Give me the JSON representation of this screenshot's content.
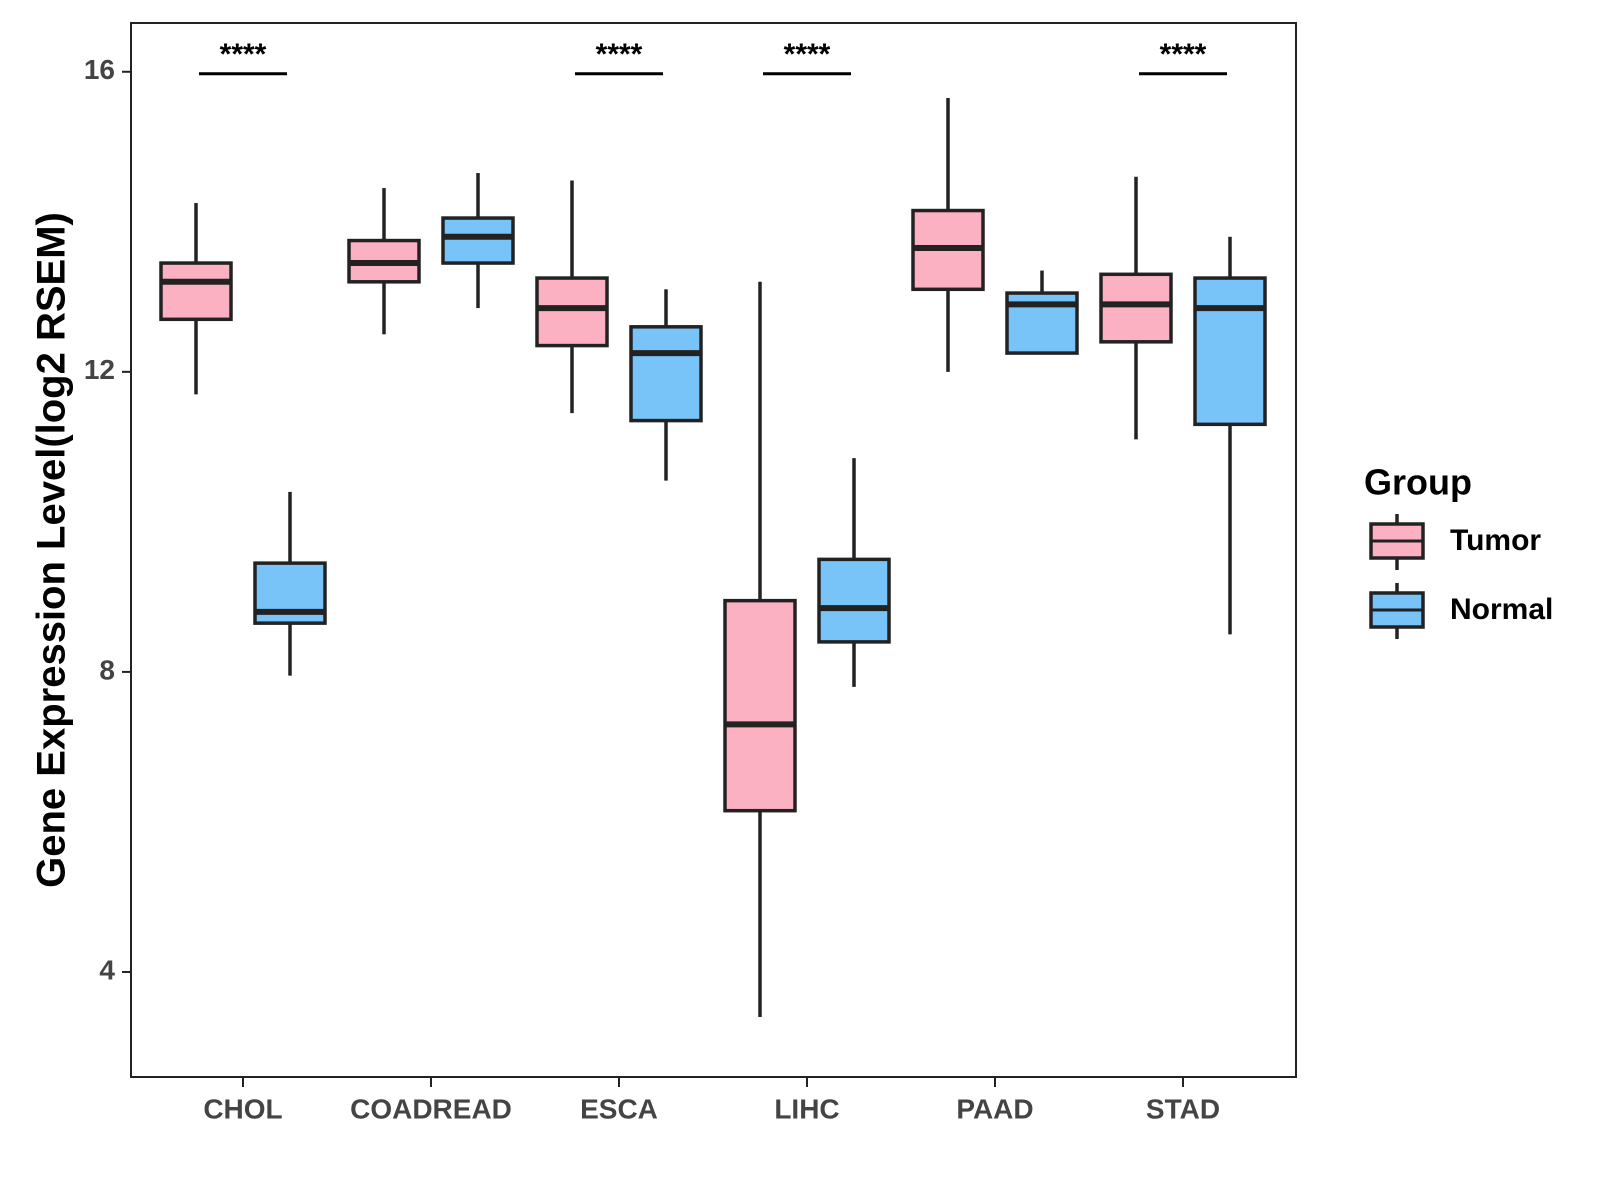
{
  "chart_data": {
    "type": "boxplot",
    "title": "",
    "xlabel": "",
    "ylabel": "Gene Expression Level(log2 RSEM)",
    "ylim": [
      2.6,
      16.65
    ],
    "yticks": [
      4,
      8,
      12,
      16
    ],
    "grid": false,
    "legend": {
      "title": "Group",
      "position": "right"
    },
    "categories": [
      "CHOL",
      "COADREAD",
      "ESCA",
      "LIHC",
      "PAAD",
      "STAD"
    ],
    "series": [
      {
        "name": "Tumor",
        "color": "#FBB1C2",
        "boxes": [
          {
            "category": "CHOL",
            "whisker_low": 11.7,
            "q1": 12.7,
            "median": 13.2,
            "q3": 13.45,
            "whisker_high": 14.25
          },
          {
            "category": "COADREAD",
            "whisker_low": 12.5,
            "q1": 13.2,
            "median": 13.45,
            "q3": 13.75,
            "whisker_high": 14.45
          },
          {
            "category": "ESCA",
            "whisker_low": 11.45,
            "q1": 12.35,
            "median": 12.85,
            "q3": 13.25,
            "whisker_high": 14.55
          },
          {
            "category": "LIHC",
            "whisker_low": 3.4,
            "q1": 6.15,
            "median": 7.3,
            "q3": 8.95,
            "whisker_high": 13.2
          },
          {
            "category": "PAAD",
            "whisker_low": 12.0,
            "q1": 13.1,
            "median": 13.65,
            "q3": 14.15,
            "whisker_high": 15.65
          },
          {
            "category": "STAD",
            "whisker_low": 11.1,
            "q1": 12.4,
            "median": 12.9,
            "q3": 13.3,
            "whisker_high": 14.6
          }
        ]
      },
      {
        "name": "Normal",
        "color": "#78C3F7",
        "boxes": [
          {
            "category": "CHOL",
            "whisker_low": 7.95,
            "q1": 8.65,
            "median": 8.8,
            "q3": 9.45,
            "whisker_high": 10.4
          },
          {
            "category": "COADREAD",
            "whisker_low": 12.85,
            "q1": 13.45,
            "median": 13.8,
            "q3": 14.05,
            "whisker_high": 14.65
          },
          {
            "category": "ESCA",
            "whisker_low": 10.55,
            "q1": 11.35,
            "median": 12.25,
            "q3": 12.6,
            "whisker_high": 13.1
          },
          {
            "category": "LIHC",
            "whisker_low": 7.8,
            "q1": 8.4,
            "median": 8.85,
            "q3": 9.5,
            "whisker_high": 10.85
          },
          {
            "category": "PAAD",
            "whisker_low": 12.25,
            "q1": 12.25,
            "median": 12.9,
            "q3": 13.05,
            "whisker_high": 13.35
          },
          {
            "category": "STAD",
            "whisker_low": 8.5,
            "q1": 11.3,
            "median": 12.85,
            "q3": 13.25,
            "whisker_high": 13.8
          }
        ]
      }
    ],
    "annotations": [
      {
        "category": "CHOL",
        "label": "****",
        "y": 16
      },
      {
        "category": "ESCA",
        "label": "****",
        "y": 16
      },
      {
        "category": "LIHC",
        "label": "****",
        "y": 16
      },
      {
        "category": "STAD",
        "label": "****",
        "y": 16
      }
    ]
  }
}
